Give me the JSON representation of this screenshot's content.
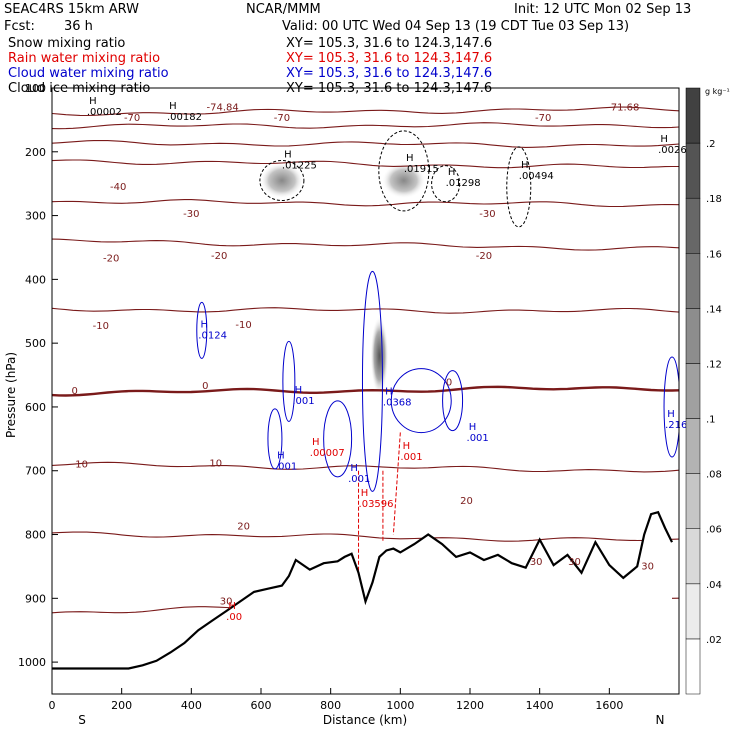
{
  "header": {
    "model": "SEAC4RS 15km ARW",
    "org": "NCAR/MMM",
    "init": "Init: 12 UTC Mon 02 Sep 13",
    "fcst_label": "Fcst:",
    "fcst_value": "36 h",
    "valid": "Valid: 00 UTC Wed 04 Sep 13 (19 CDT Tue 03 Sep 13)",
    "fields": [
      {
        "name": "Snow mixing ratio",
        "section": "XY=  105.3, 31.6 to 124.3,147.6",
        "color": "#000000"
      },
      {
        "name": "Rain water mixing ratio",
        "section": "XY=  105.3, 31.6 to 124.3,147.6",
        "color": "#e00000"
      },
      {
        "name": "Cloud water mixing ratio",
        "section": "XY=  105.3, 31.6 to 124.3,147.6",
        "color": "#0000cc"
      },
      {
        "name": "Cloud ice mixing ratio",
        "section": "XY=  105.3, 31.6 to 124.3,147.6",
        "color": "#000000"
      }
    ]
  },
  "colorbar": {
    "unit": "g kg⁻¹",
    "ticks": [
      ".02",
      ".04",
      ".06",
      ".08",
      ".1",
      ".12",
      ".14",
      ".16",
      ".18",
      ".2"
    ]
  },
  "chart_data": {
    "type": "cross-section",
    "xlabel": "Distance (km)",
    "ylabel": "Pressure (hPa)",
    "xlim": [
      0,
      1800
    ],
    "ylim": [
      1050,
      100
    ],
    "y_log_scale": false,
    "x_ticks": [
      "0",
      "200",
      "400",
      "600",
      "800",
      "1000",
      "1200",
      "1400",
      "1600"
    ],
    "y_ticks": [
      "100",
      "200",
      "300",
      "400",
      "500",
      "600",
      "700",
      "800",
      "900",
      "1000"
    ],
    "end_labels": {
      "left": "S",
      "right": "N"
    },
    "temperature_contours": [
      {
        "label": "-70",
        "p_left": 140,
        "p_right": 133
      },
      {
        "label": "-60",
        "p_left": 160,
        "p_right": 158
      },
      {
        "label": "-50",
        "p_left": 186,
        "p_right": 190
      },
      {
        "label": "-40",
        "p_left": 214,
        "p_right": 225
      },
      {
        "label": "-30",
        "p_left": 278,
        "p_right": 283
      },
      {
        "label": "-20",
        "p_left": 340,
        "p_right": 352
      },
      {
        "label": "-10",
        "p_left": 447,
        "p_right": 450
      },
      {
        "label": "0",
        "p_left": 578,
        "p_right": 570
      },
      {
        "label": "10",
        "p_left": 690,
        "p_right": 700
      },
      {
        "label": "20",
        "p_left": 798,
        "p_right": 810
      },
      {
        "label": "30",
        "p_left": 922,
        "p_right": 900
      }
    ],
    "temperature_labels": [
      {
        "text": "-74.84",
        "x": 490,
        "p": 135
      },
      {
        "text": "-71.68",
        "x": 1640,
        "p": 135
      },
      {
        "text": "-70",
        "x": 230,
        "p": 152
      },
      {
        "text": "-70",
        "x": 660,
        "p": 152
      },
      {
        "text": "-70",
        "x": 1410,
        "p": 152
      },
      {
        "text": "-40",
        "x": 190,
        "p": 260
      },
      {
        "text": "-30",
        "x": 400,
        "p": 302
      },
      {
        "text": "-30",
        "x": 1250,
        "p": 302
      },
      {
        "text": "-20",
        "x": 170,
        "p": 372
      },
      {
        "text": "-20",
        "x": 480,
        "p": 368
      },
      {
        "text": "-20",
        "x": 1240,
        "p": 368
      },
      {
        "text": "-10",
        "x": 140,
        "p": 478
      },
      {
        "text": "-10",
        "x": 550,
        "p": 476
      },
      {
        "text": "0",
        "x": 65,
        "p": 580
      },
      {
        "text": "0",
        "x": 440,
        "p": 572
      },
      {
        "text": "0",
        "x": 1140,
        "p": 566
      },
      {
        "text": "10",
        "x": 85,
        "p": 695
      },
      {
        "text": "10",
        "x": 470,
        "p": 693
      },
      {
        "text": "20",
        "x": 550,
        "p": 792
      },
      {
        "text": "20",
        "x": 1190,
        "p": 752
      },
      {
        "text": "30",
        "x": 500,
        "p": 910
      },
      {
        "text": "30",
        "x": 1390,
        "p": 848
      },
      {
        "text": "30",
        "x": 1500,
        "p": 848
      },
      {
        "text": "30",
        "x": 1710,
        "p": 855
      }
    ],
    "maxima_labels": [
      {
        "text": ".00002",
        "x": 100,
        "p": 142,
        "color": "#000000"
      },
      {
        "text": ".00182",
        "x": 330,
        "p": 150,
        "color": "#000000"
      },
      {
        "text": ".01225",
        "x": 660,
        "p": 226,
        "color": "#000000"
      },
      {
        "text": ".01915",
        "x": 1010,
        "p": 232,
        "color": "#000000"
      },
      {
        "text": ".01298",
        "x": 1130,
        "p": 254,
        "color": "#000000"
      },
      {
        "text": ".00494",
        "x": 1340,
        "p": 243,
        "color": "#000000"
      },
      {
        "text": ".0026",
        "x": 1740,
        "p": 202,
        "color": "#000000"
      },
      {
        "text": ".0124",
        "x": 420,
        "p": 493,
        "color": "#0000cc"
      },
      {
        "text": ".001",
        "x": 690,
        "p": 595,
        "color": "#0000cc"
      },
      {
        "text": ".0368",
        "x": 950,
        "p": 598,
        "color": "#0000cc"
      },
      {
        "text": ".001",
        "x": 1190,
        "p": 653,
        "color": "#0000cc"
      },
      {
        "text": ".2164",
        "x": 1760,
        "p": 633,
        "color": "#0000cc"
      },
      {
        "text": ".001",
        "x": 640,
        "p": 698,
        "color": "#0000cc"
      },
      {
        "text": ".001",
        "x": 850,
        "p": 718,
        "color": "#0000cc"
      },
      {
        "text": ".00007",
        "x": 740,
        "p": 677,
        "color": "#e00000"
      },
      {
        "text": ".001",
        "x": 1000,
        "p": 683,
        "color": "#e00000"
      },
      {
        "text": ".03596",
        "x": 880,
        "p": 757,
        "color": "#e00000"
      },
      {
        "text": ".00",
        "x": 500,
        "p": 934,
        "color": "#e00000"
      }
    ],
    "terrain": {
      "x": [
        0,
        220,
        260,
        300,
        340,
        380,
        420,
        460,
        500,
        540,
        580,
        620,
        660,
        680,
        700,
        740,
        780,
        820,
        840,
        860,
        880,
        900,
        920,
        940,
        960,
        980,
        1000,
        1040,
        1080,
        1120,
        1160,
        1200,
        1240,
        1280,
        1320,
        1360,
        1400,
        1440,
        1480,
        1520,
        1560,
        1600,
        1640,
        1680,
        1700,
        1720,
        1740,
        1760,
        1780
      ],
      "p": [
        1010,
        1010,
        1005,
        998,
        985,
        970,
        950,
        935,
        920,
        905,
        890,
        885,
        880,
        865,
        840,
        855,
        845,
        842,
        835,
        830,
        860,
        905,
        875,
        835,
        825,
        822,
        828,
        815,
        800,
        815,
        835,
        828,
        840,
        832,
        845,
        852,
        808,
        848,
        832,
        860,
        812,
        848,
        868,
        850,
        800,
        768,
        765,
        790,
        812
      ]
    },
    "shaded_snow_maxima": [
      {
        "x": 1010,
        "p": 245,
        "value": 0.019
      },
      {
        "x": 660,
        "p": 245,
        "value": 0.012
      },
      {
        "x": 940,
        "p": 520,
        "value": 0.2
      }
    ]
  }
}
